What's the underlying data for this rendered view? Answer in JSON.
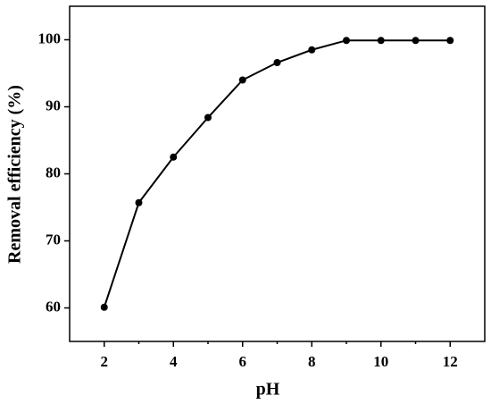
{
  "chart_data": {
    "type": "line",
    "x_label": "pH",
    "y_label": "Removal efficiency (%)",
    "x": [
      2,
      3,
      4,
      5,
      6,
      7,
      8,
      9,
      10,
      11,
      12
    ],
    "series": [
      {
        "name": "Removal efficiency",
        "color": "#000000",
        "values": [
          60.1,
          75.7,
          82.5,
          88.4,
          94.0,
          96.6,
          98.5,
          99.9,
          99.9,
          99.9,
          99.9
        ]
      }
    ],
    "xlim": [
      1,
      13
    ],
    "xticks": [
      2,
      4,
      6,
      8,
      10,
      12
    ],
    "xminorticks": [
      3,
      5,
      7,
      9,
      11
    ],
    "ylim": [
      55,
      105
    ],
    "yticks": [
      60,
      70,
      80,
      90,
      100
    ],
    "grid": false
  }
}
